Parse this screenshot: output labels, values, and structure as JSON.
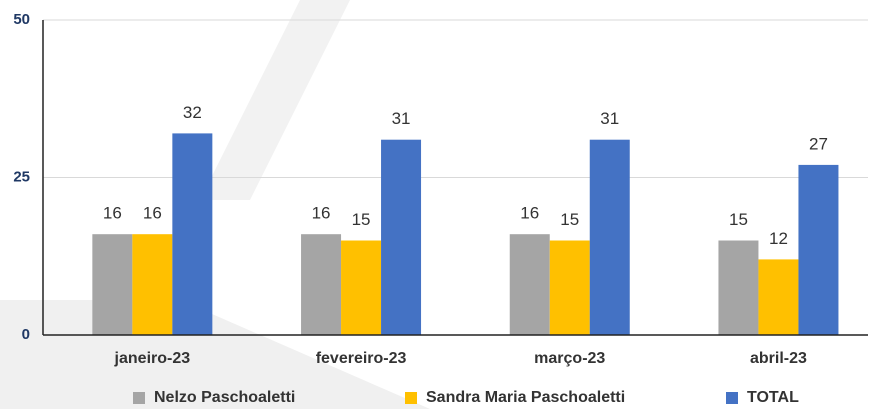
{
  "chart_data": {
    "type": "bar",
    "categories": [
      "janeiro-23",
      "fevereiro-23",
      "março-23",
      "abril-23"
    ],
    "series": [
      {
        "name": "Nelzo Paschoaletti",
        "color": "#a5a5a5",
        "values": [
          16,
          16,
          16,
          15
        ]
      },
      {
        "name": "Sandra Maria Paschoaletti",
        "color": "#ffc000",
        "values": [
          16,
          15,
          15,
          12
        ]
      },
      {
        "name": "TOTAL",
        "color": "#4472c4",
        "values": [
          32,
          31,
          31,
          27
        ]
      }
    ],
    "ylim": [
      0,
      50
    ],
    "yticks": [
      0,
      25,
      50
    ],
    "grid": true,
    "legend": "bottom"
  }
}
